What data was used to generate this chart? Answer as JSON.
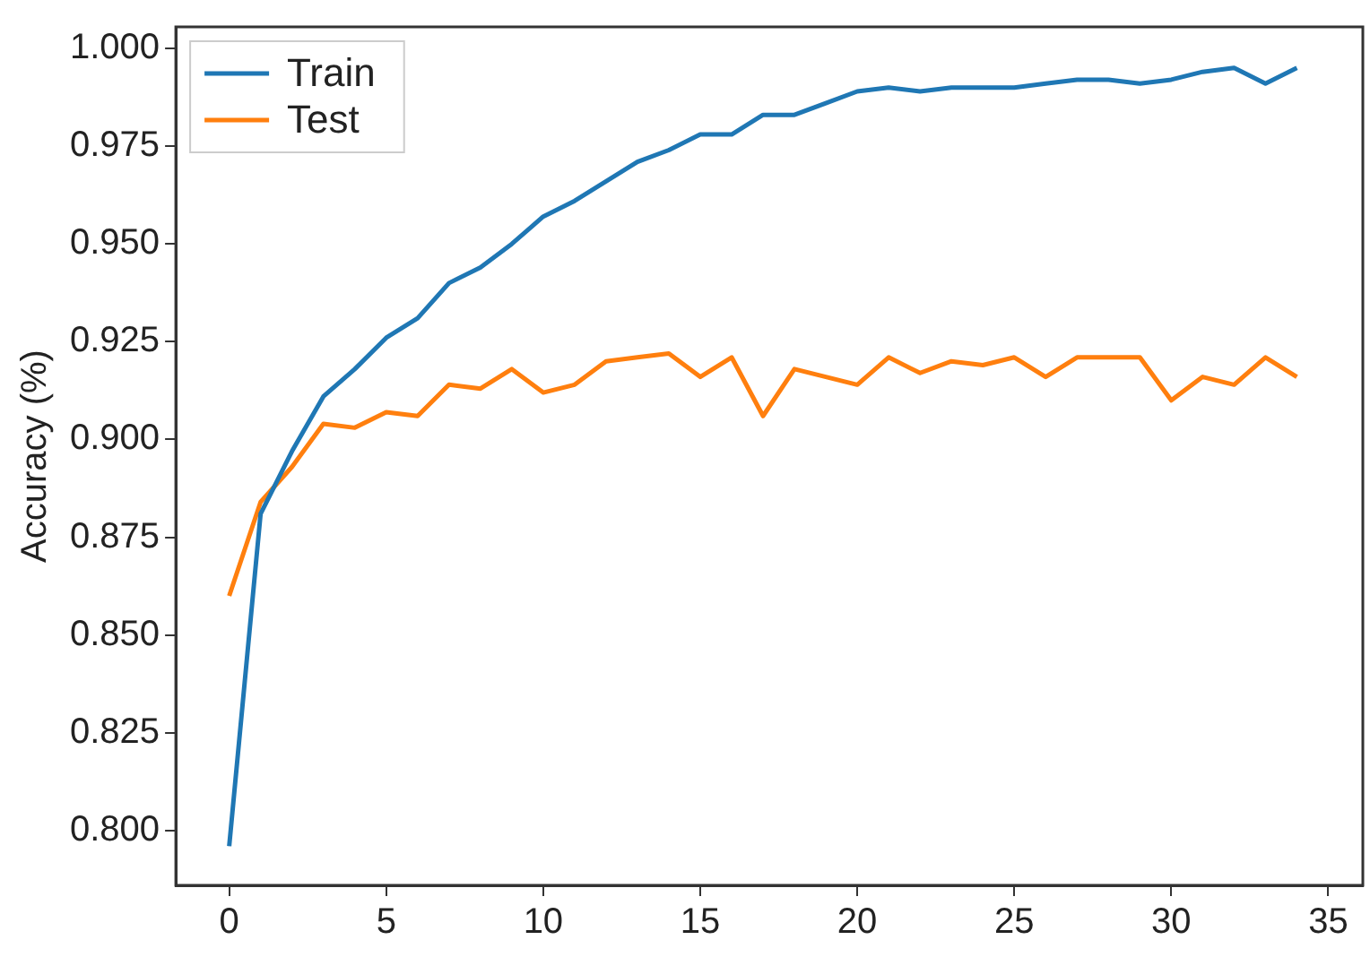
{
  "chart_data": {
    "type": "line",
    "ylabel": "Accuracy (%)",
    "x": [
      0,
      1,
      2,
      3,
      4,
      5,
      6,
      7,
      8,
      9,
      10,
      11,
      12,
      13,
      14,
      15,
      16,
      17,
      18,
      19,
      20,
      21,
      22,
      23,
      24,
      25,
      26,
      27,
      28,
      29,
      30,
      31,
      32,
      33,
      34
    ],
    "series": [
      {
        "name": "Train",
        "color": "#1f77b4",
        "values": [
          0.796,
          0.881,
          0.897,
          0.911,
          0.918,
          0.926,
          0.931,
          0.94,
          0.944,
          0.95,
          0.957,
          0.961,
          0.966,
          0.971,
          0.974,
          0.978,
          0.978,
          0.983,
          0.983,
          0.986,
          0.989,
          0.99,
          0.989,
          0.99,
          0.99,
          0.99,
          0.991,
          0.992,
          0.992,
          0.991,
          0.992,
          0.994,
          0.995,
          0.991,
          0.995
        ]
      },
      {
        "name": "Test",
        "color": "#ff7f0e",
        "values": [
          0.86,
          0.884,
          0.893,
          0.904,
          0.903,
          0.907,
          0.906,
          0.914,
          0.913,
          0.918,
          0.912,
          0.914,
          0.92,
          0.921,
          0.922,
          0.916,
          0.921,
          0.906,
          0.918,
          0.916,
          0.914,
          0.921,
          0.917,
          0.92,
          0.919,
          0.921,
          0.916,
          0.921,
          0.921,
          0.921,
          0.91,
          0.916,
          0.914,
          0.921,
          0.916
        ]
      }
    ],
    "xlim": [
      -1.7,
      36.1
    ],
    "xticks": [
      0,
      5,
      10,
      15,
      20,
      25,
      30,
      35
    ],
    "ylim": [
      0.786,
      1.0055
    ],
    "yticks": [
      {
        "value": 0.8,
        "label": "0.800"
      },
      {
        "value": 0.825,
        "label": "0.825"
      },
      {
        "value": 0.85,
        "label": "0.850"
      },
      {
        "value": 0.875,
        "label": "0.875"
      },
      {
        "value": 0.9,
        "label": "0.900"
      },
      {
        "value": 0.925,
        "label": "0.925"
      },
      {
        "value": 0.95,
        "label": "0.950"
      },
      {
        "value": 0.975,
        "label": "0.975"
      },
      {
        "value": 1.0,
        "label": "1.000"
      }
    ],
    "grid": false,
    "legend": "top left",
    "marker": "none",
    "line_style": "solid"
  }
}
